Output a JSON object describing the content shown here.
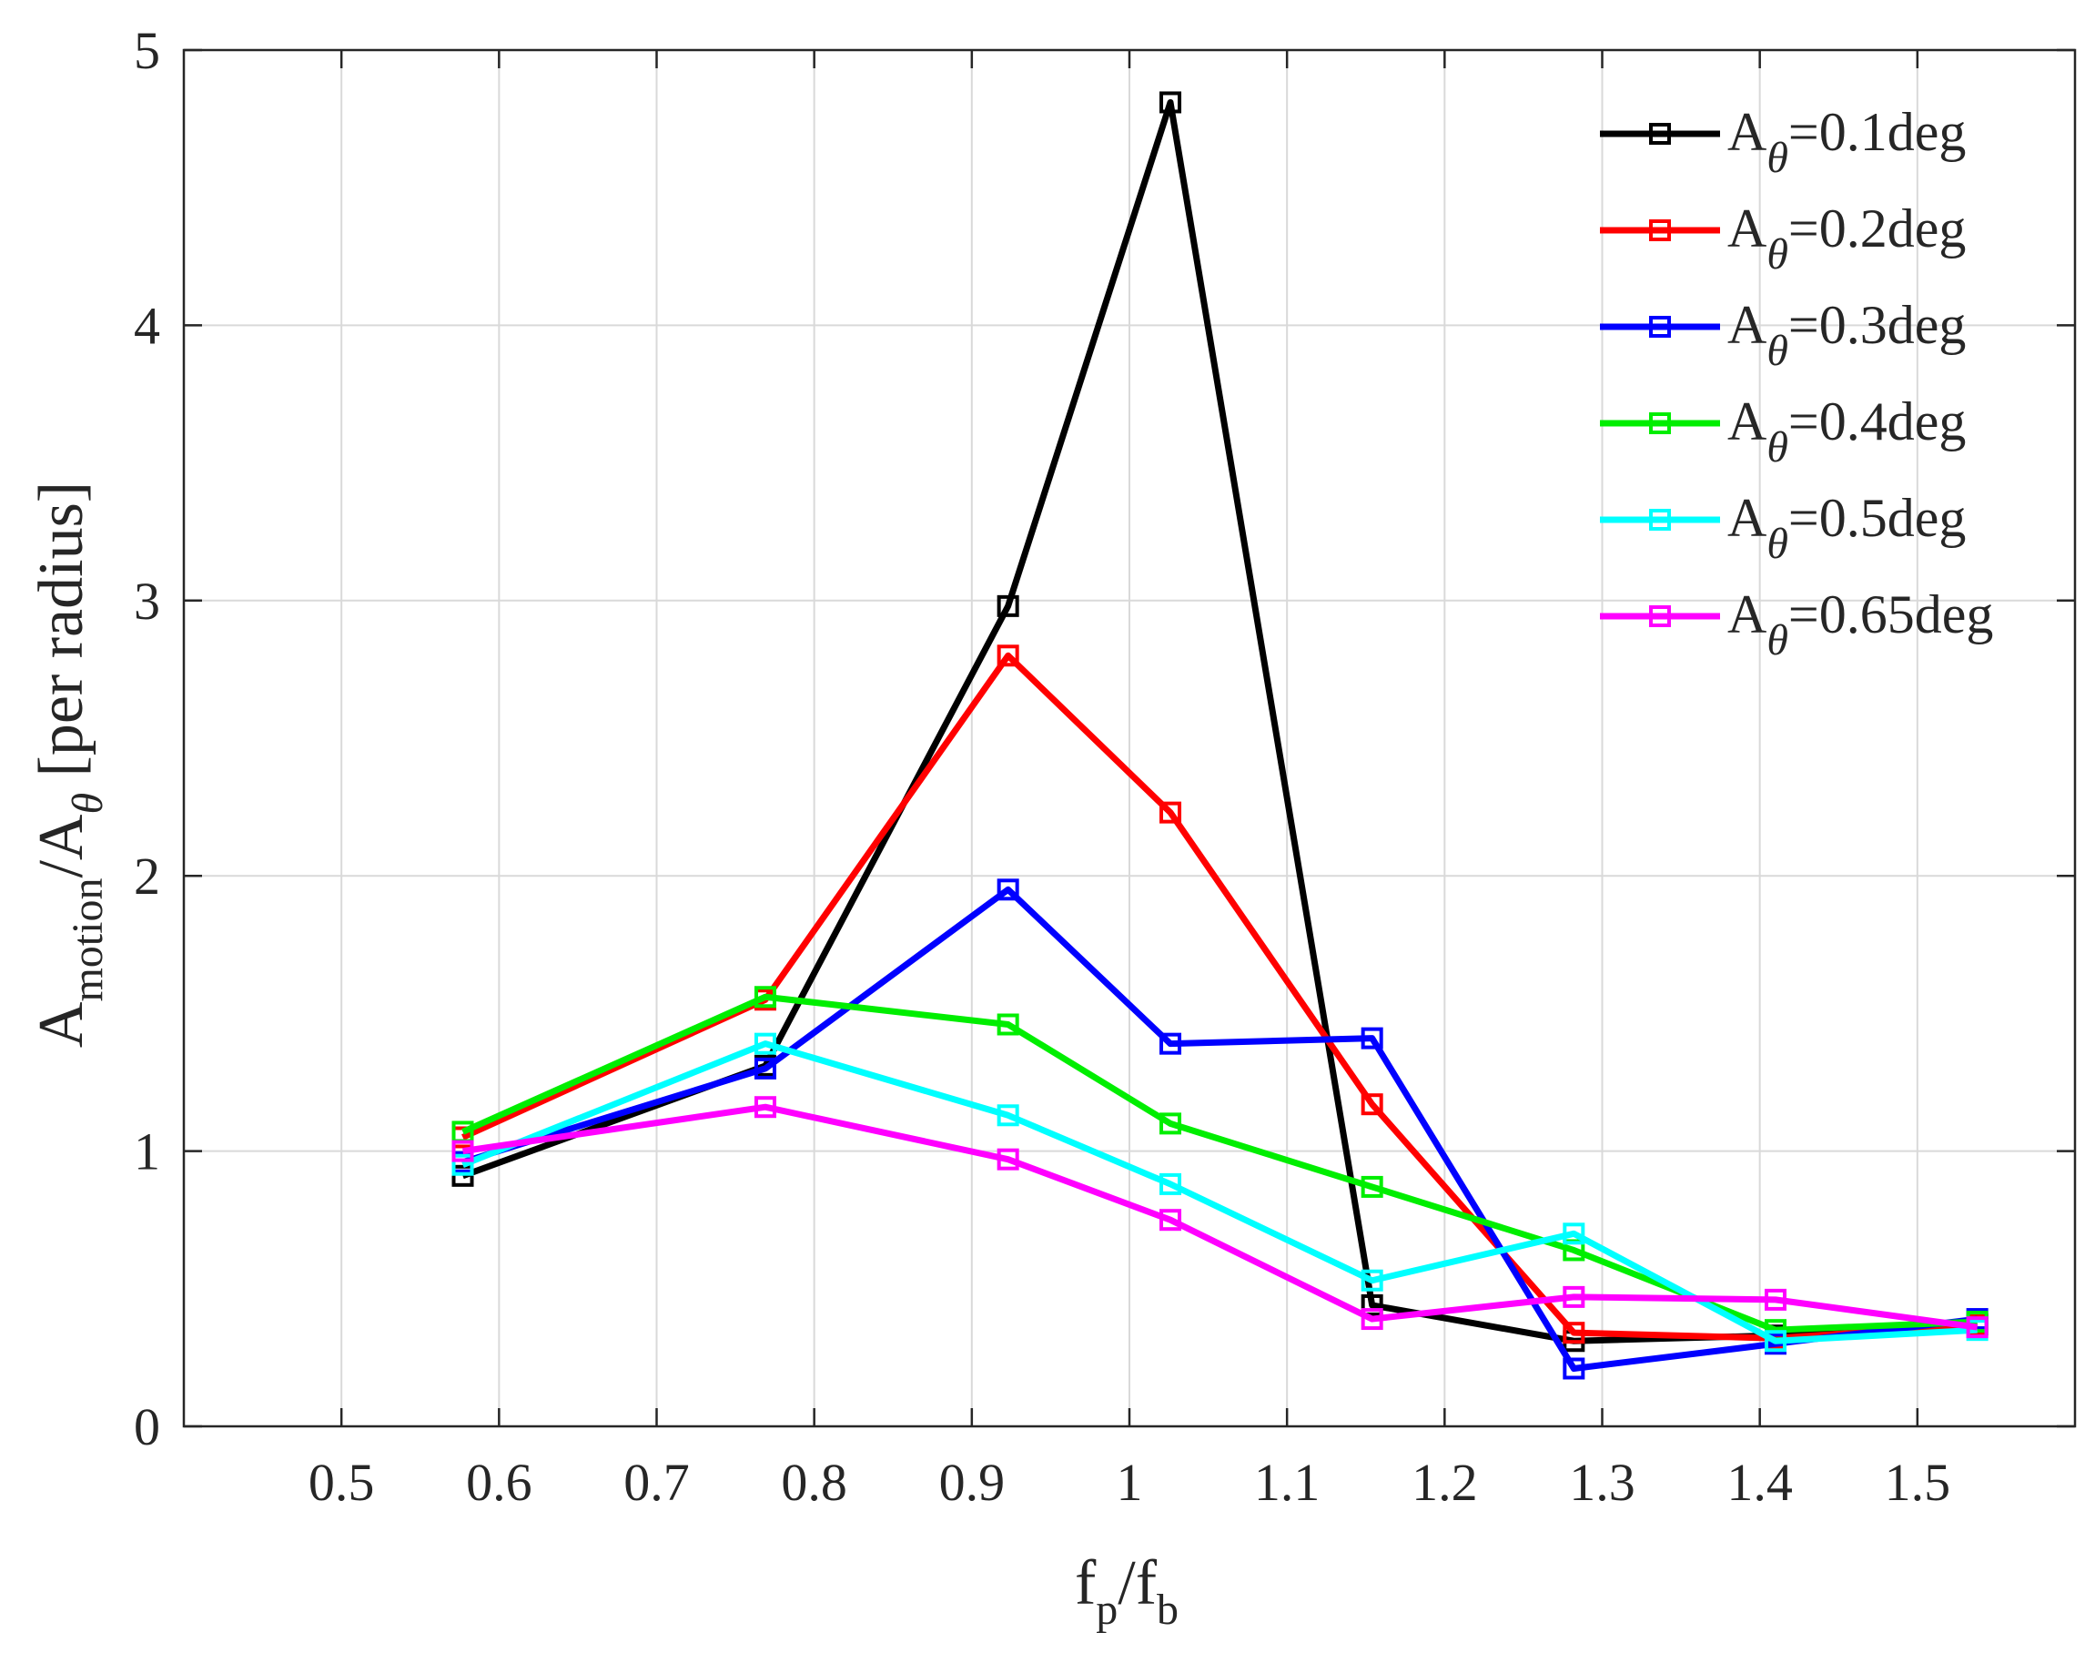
{
  "chart_data": {
    "type": "line",
    "xlabel": {
      "main": "f",
      "sub1": "p",
      "sep": "/f",
      "sub2": "b"
    },
    "ylabel": {
      "main": "A",
      "sub1": "motion",
      "sep": "/A",
      "sub2": "θ",
      "suffix": " [per radius]"
    },
    "xlim": [
      0.4,
      1.6
    ],
    "ylim": [
      0,
      5
    ],
    "xticks": [
      0.5,
      0.6,
      0.7,
      0.8,
      0.9,
      1.0,
      1.1,
      1.2,
      1.3,
      1.4,
      1.5
    ],
    "xtick_labels": [
      "0.5",
      "0.6",
      "0.7",
      "0.8",
      "0.9",
      "1",
      "1.1",
      "1.2",
      "1.3",
      "1.4",
      "1.5"
    ],
    "yticks": [
      0,
      1,
      2,
      3,
      4,
      5
    ],
    "ytick_labels": [
      "0",
      "1",
      "2",
      "3",
      "4",
      "5"
    ],
    "grid": true,
    "legend_position": "top-right",
    "marker": "square",
    "x": [
      0.577,
      0.769,
      0.923,
      1.026,
      1.154,
      1.282,
      1.41,
      1.538
    ],
    "series": [
      {
        "name": "0.1deg",
        "legend_prefix": "A",
        "legend_sub": "θ",
        "legend_rest": "=0.1deg",
        "color": "#000000",
        "values": [
          0.91,
          1.31,
          2.98,
          4.81,
          0.44,
          0.31,
          0.33,
          0.37
        ]
      },
      {
        "name": "0.2deg",
        "legend_prefix": "A",
        "legend_sub": "θ",
        "legend_rest": "=0.2deg",
        "color": "#ff0000",
        "values": [
          1.05,
          1.55,
          2.8,
          2.23,
          1.17,
          0.34,
          0.32,
          0.37
        ]
      },
      {
        "name": "0.3deg",
        "legend_prefix": "A",
        "legend_sub": "θ",
        "legend_rest": "=0.3deg",
        "color": "#0000ff",
        "values": [
          0.96,
          1.3,
          1.95,
          1.39,
          1.41,
          0.21,
          0.3,
          0.39
        ]
      },
      {
        "name": "0.4deg",
        "legend_prefix": "A",
        "legend_sub": "θ",
        "legend_rest": "=0.4deg",
        "color": "#00ee00",
        "values": [
          1.07,
          1.56,
          1.46,
          1.1,
          0.87,
          0.64,
          0.35,
          0.38
        ]
      },
      {
        "name": "0.5deg",
        "legend_prefix": "A",
        "legend_sub": "θ",
        "legend_rest": "=0.5deg",
        "color": "#00ffff",
        "values": [
          0.95,
          1.39,
          1.13,
          0.88,
          0.53,
          0.7,
          0.31,
          0.35
        ]
      },
      {
        "name": "0.65deg",
        "legend_prefix": "A",
        "legend_sub": "θ",
        "legend_rest": "=0.65deg",
        "color": "#ff00ff",
        "values": [
          1.0,
          1.16,
          0.97,
          0.75,
          0.39,
          0.47,
          0.46,
          0.36
        ]
      }
    ]
  }
}
